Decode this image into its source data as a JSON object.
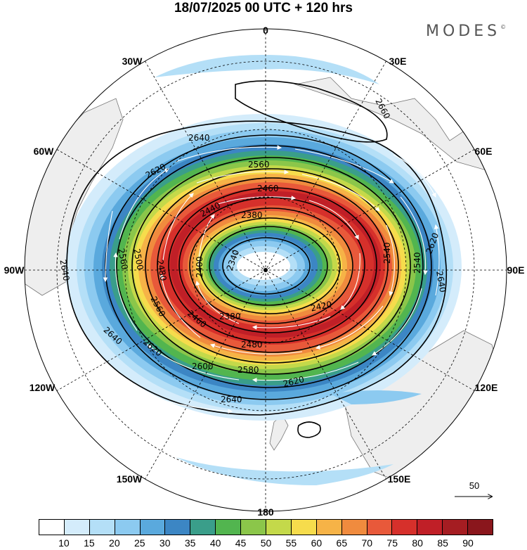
{
  "title": "18/07/2025  00 UTC  + 120 hrs",
  "brand": "MODES",
  "brand_mark": "©",
  "longitude_labels": {
    "n": "0",
    "ne30": "30E",
    "ne60": "60E",
    "e": "90E",
    "se120": "120E",
    "se150": "150E",
    "s": "180",
    "sw150": "150W",
    "sw120": "120W",
    "w": "90W",
    "nw60": "60W",
    "nw30": "30W"
  },
  "contour_labels": [
    "2660",
    "2640",
    "2620",
    "2560",
    "2460",
    "2440",
    "2380",
    "2340",
    "2400",
    "2540",
    "2620",
    "2640",
    "2420",
    "2380",
    "2480",
    "2580",
    "2600",
    "2620",
    "2640",
    "2460",
    "2500",
    "2560",
    "2620",
    "2640",
    "2640",
    "2560",
    "2480",
    "2540"
  ],
  "reference_vector": {
    "label": "50"
  },
  "colorbar": {
    "ticks": [
      "10",
      "15",
      "20",
      "25",
      "30",
      "35",
      "40",
      "45",
      "50",
      "55",
      "60",
      "65",
      "70",
      "75",
      "80",
      "85",
      "90"
    ],
    "colors": [
      "#ffffff",
      "#d4ecfb",
      "#b4dff7",
      "#8ccaf0",
      "#5aa9dd",
      "#3c86c4",
      "#3a9e8a",
      "#52b54f",
      "#8bc64a",
      "#c4d94a",
      "#f6dc4c",
      "#f6b347",
      "#f08b3e",
      "#e8593a",
      "#d6302b",
      "#c01f27",
      "#a51d22",
      "#8a161c"
    ]
  },
  "colors": {
    "land": "#eeeeee",
    "coast": "#777777",
    "contour": "#000000",
    "grid": "#000000"
  }
}
